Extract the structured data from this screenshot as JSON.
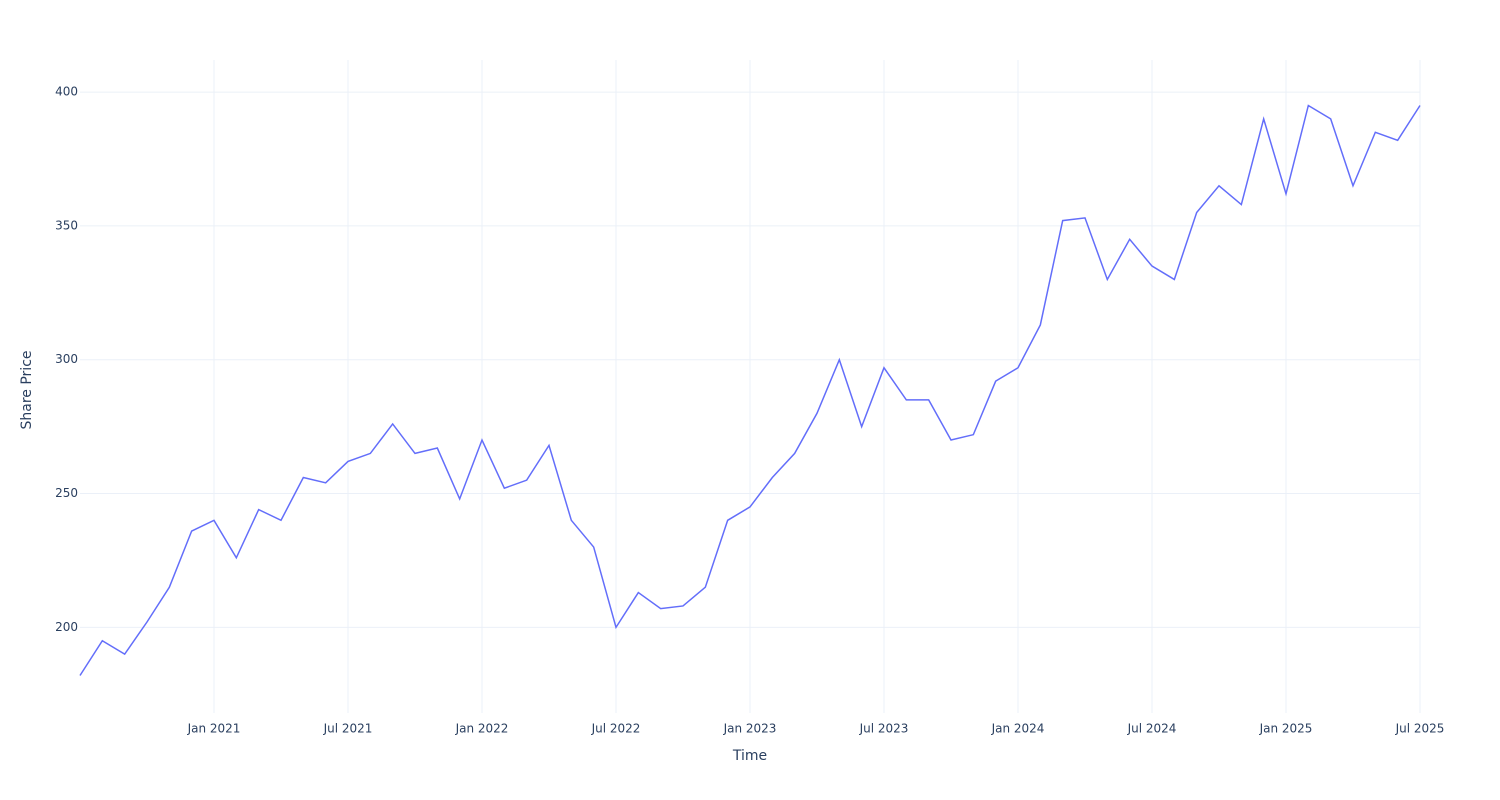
{
  "chart_data": {
    "type": "line",
    "x_label": "Time",
    "y_label": "Share Price",
    "x": [
      "2020-07",
      "2020-08",
      "2020-09",
      "2020-10",
      "2020-11",
      "2020-12",
      "2021-01",
      "2021-02",
      "2021-03",
      "2021-04",
      "2021-05",
      "2021-06",
      "2021-07",
      "2021-08",
      "2021-09",
      "2021-10",
      "2021-11",
      "2021-12",
      "2022-01",
      "2022-02",
      "2022-03",
      "2022-04",
      "2022-05",
      "2022-06",
      "2022-07",
      "2022-08",
      "2022-09",
      "2022-10",
      "2022-11",
      "2022-12",
      "2023-01",
      "2023-02",
      "2023-03",
      "2023-04",
      "2023-05",
      "2023-06",
      "2023-07",
      "2023-08",
      "2023-09",
      "2023-10",
      "2023-11",
      "2023-12",
      "2024-01",
      "2024-02",
      "2024-03",
      "2024-04",
      "2024-05",
      "2024-06",
      "2024-07",
      "2024-08",
      "2024-09",
      "2024-10",
      "2024-11",
      "2024-12",
      "2025-01",
      "2025-02",
      "2025-03",
      "2025-04",
      "2025-05",
      "2025-06",
      "2025-07"
    ],
    "values": [
      182,
      195,
      190,
      202,
      215,
      236,
      240,
      226,
      244,
      240,
      256,
      254,
      262,
      265,
      276,
      265,
      267,
      248,
      270,
      252,
      255,
      268,
      240,
      230,
      200,
      213,
      207,
      208,
      215,
      240,
      245,
      256,
      265,
      280,
      300,
      275,
      297,
      285,
      285,
      270,
      272,
      292,
      297,
      313,
      352,
      353,
      330,
      345,
      335,
      330,
      355,
      365,
      358,
      390,
      362,
      395,
      390,
      365,
      385,
      382,
      395
    ],
    "color": "#636efa",
    "xlim": [
      "2020-07",
      "2025-07"
    ],
    "xticks": [
      {
        "value": "2021-01",
        "label": "Jan 2021"
      },
      {
        "value": "2021-07",
        "label": "Jul 2021"
      },
      {
        "value": "2022-01",
        "label": "Jan 2022"
      },
      {
        "value": "2022-07",
        "label": "Jul 2022"
      },
      {
        "value": "2023-01",
        "label": "Jan 2023"
      },
      {
        "value": "2023-07",
        "label": "Jul 2023"
      },
      {
        "value": "2024-01",
        "label": "Jan 2024"
      },
      {
        "value": "2024-07",
        "label": "Jul 2024"
      },
      {
        "value": "2025-01",
        "label": "Jan 2025"
      },
      {
        "value": "2025-07",
        "label": "Jul 2025"
      }
    ],
    "ylim": [
      168,
      412
    ],
    "yticks": [
      200,
      250,
      300,
      350,
      400
    ],
    "grid": true
  }
}
